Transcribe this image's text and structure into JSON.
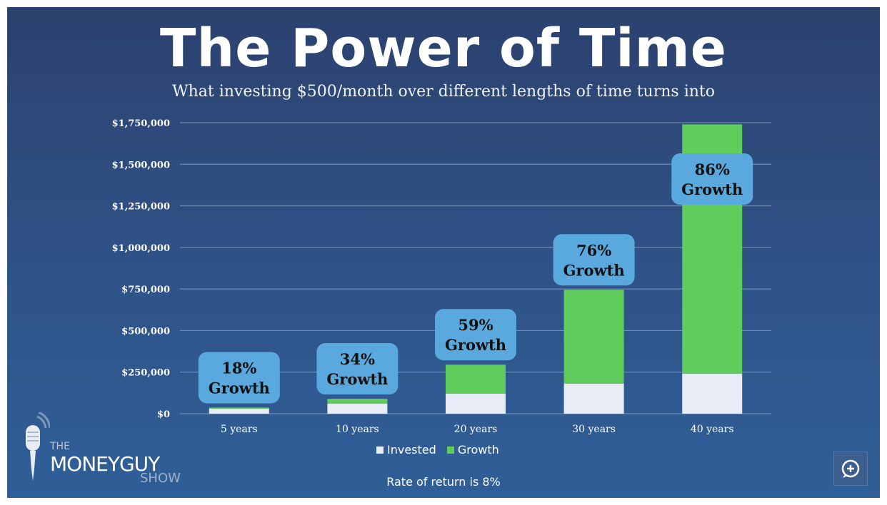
{
  "header": {
    "title": "The Power of Time",
    "subtitle": "What investing $500/month over different lengths of time turns into"
  },
  "chart_data": {
    "type": "bar",
    "stacked": true,
    "categories": [
      "5 years",
      "10 years",
      "20 years",
      "30 years",
      "40 years"
    ],
    "series": [
      {
        "name": "Invested",
        "color": "#e8ecf7",
        "values": [
          30000,
          60000,
          120000,
          180000,
          240000
        ]
      },
      {
        "name": "Growth",
        "color": "#5fcc5c",
        "values": [
          6700,
          30000,
          175000,
          565000,
          1500000
        ]
      }
    ],
    "y_ticks": [
      "$0",
      "$250,000",
      "$500,000",
      "$750,000",
      "$1,000,000",
      "$1,250,000",
      "$1,500,000",
      "$1,750,000"
    ],
    "ylim": [
      0,
      1750000
    ],
    "grid": true,
    "callouts": [
      {
        "pct": "18%",
        "word": "Growth"
      },
      {
        "pct": "34%",
        "word": "Growth"
      },
      {
        "pct": "59%",
        "word": "Growth"
      },
      {
        "pct": "76%",
        "word": "Growth"
      },
      {
        "pct": "86%",
        "word": "Growth"
      }
    ],
    "legend_position": "bottom",
    "note": "Rate of return is 8%"
  },
  "branding": {
    "the": "THE",
    "name": "MONEYGUY",
    "show": "SHOW"
  },
  "colors": {
    "callout_bg": "#5aa9de",
    "grid": "#7f96b8"
  },
  "icons": {
    "logo": "microphone-icon",
    "fab": "chat-plus-icon"
  }
}
